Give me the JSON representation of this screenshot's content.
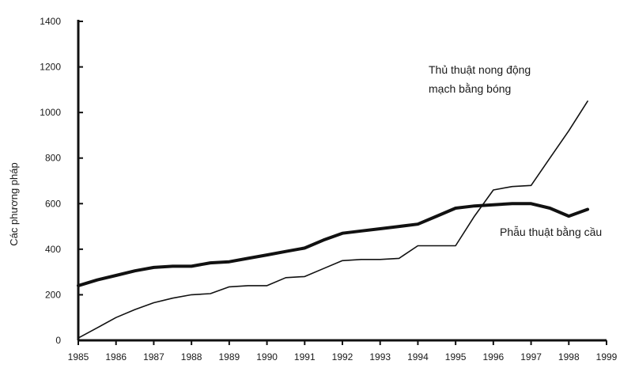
{
  "chart_data": {
    "type": "line",
    "title": "",
    "xlabel": "",
    "ylabel": "Các phương pháp",
    "x": [
      1985,
      1985.5,
      1986,
      1986.5,
      1987,
      1987.5,
      1988,
      1988.5,
      1989,
      1989.5,
      1990,
      1990.5,
      1991,
      1991.5,
      1992,
      1992.5,
      1993,
      1993.5,
      1994,
      1994.5,
      1995,
      1995.5,
      1996,
      1996.5,
      1997,
      1997.5,
      1998,
      1998.5
    ],
    "x_ticks": [
      1985,
      1986,
      1987,
      1988,
      1989,
      1990,
      1991,
      1992,
      1993,
      1994,
      1995,
      1996,
      1997,
      1998,
      1999
    ],
    "y_ticks": [
      0,
      200,
      400,
      600,
      800,
      1000,
      1200,
      1400
    ],
    "xlim": [
      1985,
      1999
    ],
    "ylim": [
      0,
      1400
    ],
    "grid": false,
    "series": [
      {
        "name": "Phẫu thuật bằng cầu",
        "line_width": "thick",
        "color": "#111111",
        "values": [
          240,
          265,
          285,
          305,
          320,
          325,
          325,
          340,
          345,
          360,
          375,
          390,
          405,
          440,
          470,
          480,
          490,
          500,
          510,
          545,
          580,
          590,
          595,
          600,
          600,
          580,
          545,
          575
        ]
      },
      {
        "name": "Thủ thuật nong động mạch bằng bóng",
        "line_width": "thin",
        "color": "#111111",
        "values": [
          10,
          55,
          100,
          135,
          165,
          185,
          200,
          205,
          235,
          240,
          240,
          275,
          280,
          315,
          350,
          355,
          355,
          360,
          415,
          415,
          415,
          545,
          660,
          675,
          680,
          800,
          920,
          1050
        ]
      }
    ],
    "annotations": [
      {
        "lines": [
          "Thủ thuật nong động",
          "mạch bằng bóng"
        ],
        "target_series": 1
      },
      {
        "lines": [
          "Phẫu thuật bằng cầu"
        ],
        "target_series": 0
      }
    ]
  }
}
